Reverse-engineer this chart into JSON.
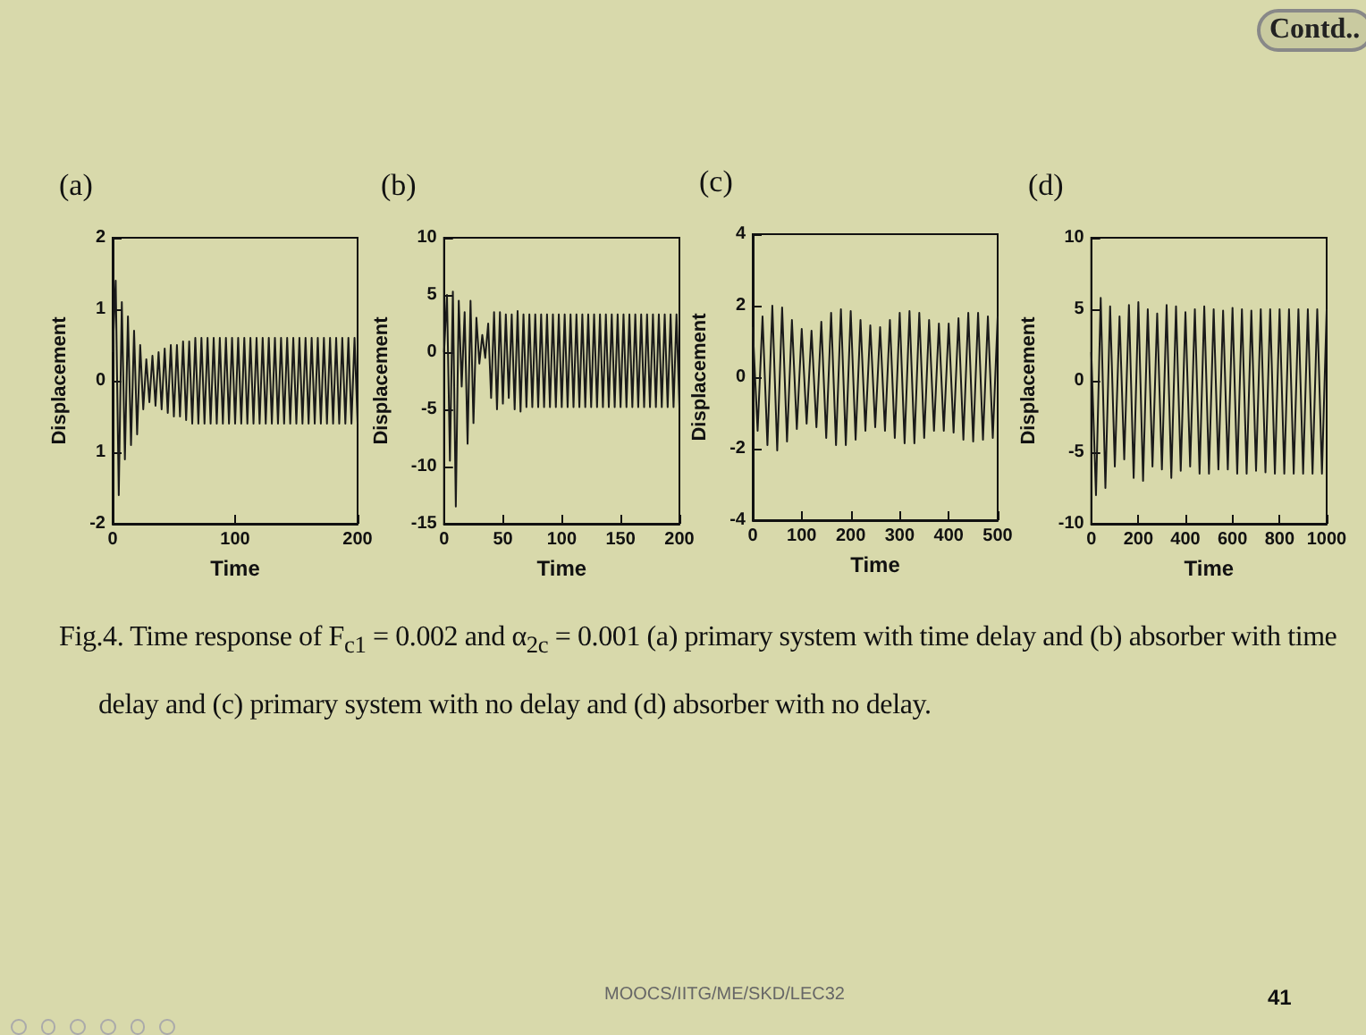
{
  "chart_data": [
    {
      "type": "line",
      "title": "(a)",
      "xlabel": "Time",
      "ylabel": "Displacement",
      "annotations": [
        "Fig.4. Time response of F$_{c1}$ = 0.002   and α$_{2c}$ = 0.001   (a) primary system with time delay and (b) absorber with time delay and (c) primary system with no delay and (d) absorber with no delay.",
        "MOOCS/IITG/ME/SKD/LEC32",
        "41",
        "Contd.."
      ],
      "x": [
        0,
        2.5,
        5,
        7.5,
        10,
        12.5,
        15,
        17.5,
        20,
        22.5,
        25,
        27.5,
        30,
        32.5,
        35,
        37.5,
        40,
        42.5,
        45,
        47.5,
        50,
        52.5,
        55,
        57.5,
        60,
        62.5,
        65,
        67.5,
        70,
        72.5,
        75,
        77.5,
        80,
        82.5,
        85,
        87.5,
        90,
        92.5,
        95,
        97.5,
        100,
        102.5,
        105,
        107.5,
        110,
        112.5,
        115,
        117.5,
        120,
        122.5,
        125,
        127.5,
        130,
        132.5,
        135,
        137.5,
        140,
        142.5,
        145,
        147.5,
        150,
        152.5,
        155,
        157.5,
        160,
        162.5,
        165,
        167.5,
        170,
        172.5,
        175,
        177.5,
        180,
        182.5,
        185,
        187.5,
        190,
        192.5,
        195,
        197.5,
        200
      ],
      "series": [
        {
          "color": "#1a1a1a",
          "values": [
            0.4,
            1.4,
            -1.6,
            1.1,
            -1.1,
            0.9,
            -0.9,
            0.7,
            -0.75,
            0.5,
            -0.4,
            0.3,
            -0.3,
            0.35,
            -0.35,
            0.4,
            -0.4,
            0.45,
            -0.45,
            0.5,
            -0.5,
            0.5,
            -0.5,
            0.55,
            -0.55,
            0.55,
            -0.6,
            0.6,
            -0.6,
            0.6,
            -0.6,
            0.6,
            -0.6,
            0.6,
            -0.6,
            0.6,
            -0.6,
            0.6,
            -0.6,
            0.6,
            -0.6,
            0.6,
            -0.6,
            0.6,
            -0.6,
            0.6,
            -0.6,
            0.6,
            -0.6,
            0.6,
            -0.6,
            0.6,
            -0.6,
            0.6,
            -0.6,
            0.6,
            -0.6,
            0.6,
            -0.6,
            0.6,
            -0.6,
            0.6,
            -0.6,
            0.6,
            -0.6,
            0.6,
            -0.6,
            0.6,
            -0.6,
            0.6,
            -0.6,
            0.6,
            -0.6,
            0.6,
            -0.6,
            0.6,
            -0.6,
            0.6,
            -0.6,
            0.6,
            -0.6
          ]
        }
      ],
      "xlim": [
        0,
        200
      ],
      "xticks": [
        0,
        100,
        200
      ],
      "ylim": [
        -2,
        2
      ],
      "yticks": [
        -2,
        {
          "value": -1,
          "label": "1"
        },
        0,
        1,
        2
      ]
    },
    {
      "type": "line",
      "title": "(b)",
      "xlabel": "Time",
      "ylabel": "Displacement",
      "x": [
        0,
        2.5,
        5,
        7.5,
        10,
        12.5,
        15,
        17.5,
        20,
        22.5,
        25,
        27.5,
        30,
        32.5,
        35,
        37.5,
        40,
        42.5,
        45,
        47.5,
        50,
        52.5,
        55,
        57.5,
        60,
        62.5,
        65,
        67.5,
        70,
        72.5,
        75,
        77.5,
        80,
        82.5,
        85,
        87.5,
        90,
        92.5,
        95,
        97.5,
        100,
        102.5,
        105,
        107.5,
        110,
        112.5,
        115,
        117.5,
        120,
        122.5,
        125,
        127.5,
        130,
        132.5,
        135,
        137.5,
        140,
        142.5,
        145,
        147.5,
        150,
        152.5,
        155,
        157.5,
        160,
        162.5,
        165,
        167.5,
        170,
        172.5,
        175,
        177.5,
        180,
        182.5,
        185,
        187.5,
        190,
        192.5,
        195,
        197.5,
        200
      ],
      "series": [
        {
          "color": "#1a1a1a",
          "values": [
            0,
            5,
            -9.5,
            5.3,
            -13.5,
            4.5,
            -3,
            3.5,
            -8,
            4.5,
            -6.2,
            3,
            -1,
            1.5,
            -0.5,
            2.5,
            -4,
            3.5,
            -5,
            3.5,
            -4.5,
            3.3,
            -4,
            3.3,
            -5,
            3.6,
            -5.2,
            3.3,
            -4.8,
            3.3,
            -4.8,
            3.3,
            -4.8,
            3.3,
            -4.8,
            3.3,
            -4.8,
            3.3,
            -4.8,
            3.3,
            -4.8,
            3.3,
            -4.8,
            3.3,
            -4.8,
            3.3,
            -4.8,
            3.3,
            -4.8,
            3.3,
            -4.8,
            3.3,
            -4.8,
            3.3,
            -4.8,
            3.3,
            -4.8,
            3.3,
            -4.8,
            3.3,
            -4.8,
            3.3,
            -4.8,
            3.3,
            -4.8,
            3.3,
            -4.8,
            3.3,
            -4.8,
            3.3,
            -4.8,
            3.3,
            -4.8,
            3.3,
            -4.8,
            3.3,
            -4.8,
            3.3,
            -4.8,
            3.3,
            -4.8
          ]
        }
      ],
      "xlim": [
        0,
        200
      ],
      "xticks": [
        0,
        50,
        100,
        150,
        200
      ],
      "ylim": [
        -15,
        10
      ],
      "yticks": [
        -15,
        -10,
        -5,
        0,
        5,
        10
      ]
    },
    {
      "type": "line",
      "title": "(c)",
      "xlabel": "Time",
      "ylabel": "Displacement",
      "x": [
        0,
        10,
        20,
        30,
        40,
        50,
        60,
        70,
        80,
        90,
        100,
        110,
        120,
        130,
        140,
        150,
        160,
        170,
        180,
        190,
        200,
        210,
        220,
        230,
        240,
        250,
        260,
        270,
        280,
        290,
        300,
        310,
        320,
        330,
        340,
        350,
        360,
        370,
        380,
        390,
        400,
        410,
        420,
        430,
        440,
        450,
        460,
        470,
        480,
        490,
        500
      ],
      "series": [
        {
          "color": "#1a1a1a",
          "values": [
            1.4,
            -1.5,
            1.7,
            -1.9,
            2.0,
            -2.05,
            1.95,
            -1.8,
            1.6,
            -1.45,
            1.35,
            -1.3,
            1.3,
            -1.4,
            1.55,
            -1.7,
            1.8,
            -1.9,
            1.9,
            -1.9,
            1.85,
            -1.75,
            1.6,
            -1.5,
            1.45,
            -1.4,
            1.4,
            -1.5,
            1.6,
            -1.7,
            1.8,
            -1.85,
            1.85,
            -1.85,
            1.8,
            -1.7,
            1.6,
            -1.5,
            1.5,
            -1.5,
            1.5,
            -1.55,
            1.65,
            -1.75,
            1.8,
            -1.8,
            1.8,
            -1.75,
            1.7,
            -1.7,
            1.7
          ]
        }
      ],
      "xlim": [
        0,
        500
      ],
      "xticks": [
        0,
        100,
        200,
        300,
        400,
        500
      ],
      "ylim": [
        -4,
        4
      ],
      "yticks": [
        -4,
        -2,
        0,
        2,
        4
      ]
    },
    {
      "type": "line",
      "title": "(d)",
      "xlabel": "Time",
      "ylabel": "Displacement",
      "x": [
        0,
        20,
        40,
        60,
        80,
        100,
        120,
        140,
        160,
        180,
        200,
        220,
        240,
        260,
        280,
        300,
        320,
        340,
        360,
        380,
        400,
        420,
        440,
        460,
        480,
        500,
        520,
        540,
        560,
        580,
        600,
        620,
        640,
        660,
        680,
        700,
        720,
        740,
        760,
        780,
        800,
        820,
        840,
        860,
        880,
        900,
        920,
        940,
        960,
        980,
        1000
      ],
      "series": [
        {
          "color": "#1a1a1a",
          "values": [
            2,
            -8,
            5.8,
            -7.5,
            5.2,
            -6,
            4.5,
            -5.5,
            5.3,
            -6.8,
            5.5,
            -7,
            5,
            -6,
            4.7,
            -6.2,
            5.3,
            -6.8,
            5.2,
            -6.3,
            4.8,
            -6,
            5,
            -6.5,
            5.2,
            -6.5,
            5,
            -6.2,
            4.9,
            -6.2,
            5.1,
            -6.5,
            5,
            -6.5,
            4.9,
            -6.3,
            5,
            -6.4,
            5,
            -6.5,
            5,
            -6.5,
            5,
            -6.5,
            5,
            -6.5,
            5,
            -6.5,
            5,
            -6.5,
            5
          ]
        }
      ],
      "xlim": [
        0,
        1000
      ],
      "xticks": [
        0,
        200,
        400,
        600,
        800,
        1000
      ],
      "ylim": [
        -10,
        10
      ],
      "yticks": [
        -10,
        -5,
        0,
        5,
        10
      ]
    }
  ]
}
